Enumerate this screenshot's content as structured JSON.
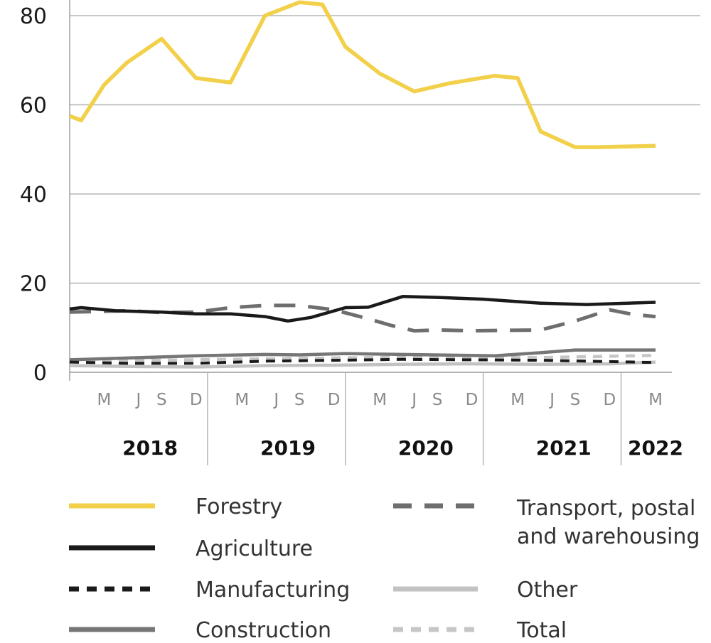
{
  "chart_data": {
    "type": "line",
    "ylim": [
      0,
      80
    ],
    "yticks": [
      "0",
      "20",
      "40",
      "60",
      "80"
    ],
    "grid": true,
    "legend_position": "bottom",
    "x_period": [
      "2018-01",
      "2022-04"
    ],
    "month_labels": [
      {
        "label": "M",
        "x": "2018-04"
      },
      {
        "label": "J",
        "x": "2018-07"
      },
      {
        "label": "S",
        "x": "2018-09"
      },
      {
        "label": "D",
        "x": "2018-12"
      },
      {
        "label": "M",
        "x": "2019-04"
      },
      {
        "label": "J",
        "x": "2019-07"
      },
      {
        "label": "S",
        "x": "2019-09"
      },
      {
        "label": "D",
        "x": "2019-12"
      },
      {
        "label": "M",
        "x": "2020-04"
      },
      {
        "label": "J",
        "x": "2020-07"
      },
      {
        "label": "S",
        "x": "2020-09"
      },
      {
        "label": "D",
        "x": "2020-12"
      },
      {
        "label": "M",
        "x": "2021-04"
      },
      {
        "label": "J",
        "x": "2021-07"
      },
      {
        "label": "S",
        "x": "2021-09"
      },
      {
        "label": "D",
        "x": "2021-12"
      },
      {
        "label": "M",
        "x": "2022-04"
      }
    ],
    "year_labels": [
      {
        "label": "2018",
        "x": "2018-08"
      },
      {
        "label": "2019",
        "x": "2019-08"
      },
      {
        "label": "2020",
        "x": "2020-08"
      },
      {
        "label": "2021",
        "x": "2021-08"
      },
      {
        "label": "2022",
        "x": "2022-04"
      }
    ],
    "year_separators": [
      "2019-01",
      "2020-01",
      "2021-01",
      "2022-01"
    ],
    "series": [
      {
        "name": "Forestry",
        "color": "#F2D04A",
        "style": "solid",
        "points": [
          [
            "2018-01",
            57.5
          ],
          [
            "2018-02",
            56.5
          ],
          [
            "2018-04",
            64.5
          ],
          [
            "2018-06",
            69.5
          ],
          [
            "2018-09",
            74.8
          ],
          [
            "2018-12",
            66
          ],
          [
            "2019-03",
            65
          ],
          [
            "2019-06",
            80
          ],
          [
            "2019-09",
            83
          ],
          [
            "2019-11",
            82.5
          ],
          [
            "2020-01",
            73
          ],
          [
            "2020-04",
            67
          ],
          [
            "2020-07",
            63
          ],
          [
            "2020-10",
            64.8
          ],
          [
            "2021-02",
            66.5
          ],
          [
            "2021-04",
            66
          ],
          [
            "2021-06",
            54
          ],
          [
            "2021-09",
            50.5
          ],
          [
            "2021-11",
            50.5
          ],
          [
            "2022-04",
            50.8
          ]
        ]
      },
      {
        "name": "Agriculture",
        "color": "#1a1a1a",
        "style": "solid",
        "points": [
          [
            "2018-01",
            14.2
          ],
          [
            "2018-02",
            14.5
          ],
          [
            "2018-05",
            13.8
          ],
          [
            "2018-09",
            13.5
          ],
          [
            "2018-12",
            13.1
          ],
          [
            "2019-03",
            13.1
          ],
          [
            "2019-06",
            12.5
          ],
          [
            "2019-08",
            11.5
          ],
          [
            "2019-10",
            12.3
          ],
          [
            "2020-01",
            14.5
          ],
          [
            "2020-03",
            14.6
          ],
          [
            "2020-06",
            17
          ],
          [
            "2020-09",
            16.8
          ],
          [
            "2021-01",
            16.4
          ],
          [
            "2021-06",
            15.5
          ],
          [
            "2021-10",
            15.2
          ],
          [
            "2022-04",
            15.7
          ]
        ]
      },
      {
        "name": "Manufacturing",
        "color": "#1a1a1a",
        "style": "dash-small",
        "points": [
          [
            "2018-01",
            2.3
          ],
          [
            "2018-06",
            2
          ],
          [
            "2018-12",
            2
          ],
          [
            "2019-06",
            2.5
          ],
          [
            "2019-12",
            2.7
          ],
          [
            "2020-06",
            2.9
          ],
          [
            "2020-12",
            2.8
          ],
          [
            "2021-06",
            2.7
          ],
          [
            "2021-12",
            2.4
          ],
          [
            "2022-04",
            2.2
          ]
        ]
      },
      {
        "name": "Construction",
        "color": "#767676",
        "style": "solid",
        "points": [
          [
            "2018-01",
            2.8
          ],
          [
            "2018-06",
            3.2
          ],
          [
            "2018-12",
            3.7
          ],
          [
            "2019-06",
            4
          ],
          [
            "2019-09",
            3.9
          ],
          [
            "2020-01",
            4.2
          ],
          [
            "2020-06",
            4
          ],
          [
            "2020-12",
            3.8
          ],
          [
            "2021-02",
            3.7
          ],
          [
            "2021-06",
            4.4
          ],
          [
            "2021-09",
            5
          ],
          [
            "2022-04",
            5
          ]
        ]
      },
      {
        "name": "Transport, postal and warehousing",
        "color": "#6e6e6e",
        "style": "dash-large",
        "points": [
          [
            "2018-01",
            13.5
          ],
          [
            "2018-06",
            13.8
          ],
          [
            "2018-09",
            13.4
          ],
          [
            "2018-12",
            13.5
          ],
          [
            "2019-03",
            14.5
          ],
          [
            "2019-06",
            15
          ],
          [
            "2019-09",
            15
          ],
          [
            "2019-12",
            14
          ],
          [
            "2020-03",
            12
          ],
          [
            "2020-05",
            10.5
          ],
          [
            "2020-07",
            9.3
          ],
          [
            "2020-09",
            9.5
          ],
          [
            "2020-12",
            9.3
          ],
          [
            "2021-06",
            9.5
          ],
          [
            "2021-09",
            11.5
          ],
          [
            "2021-12",
            14
          ],
          [
            "2022-02",
            13
          ],
          [
            "2022-04",
            12.5
          ]
        ]
      },
      {
        "name": "Other",
        "color": "#c2c2c2",
        "style": "solid",
        "points": [
          [
            "2018-01",
            1.5
          ],
          [
            "2018-06",
            1.3
          ],
          [
            "2018-12",
            1.2
          ],
          [
            "2019-06",
            1.5
          ],
          [
            "2019-12",
            1.6
          ],
          [
            "2020-06",
            1.8
          ],
          [
            "2020-12",
            1.9
          ],
          [
            "2021-06",
            1.8
          ],
          [
            "2021-12",
            1.9
          ],
          [
            "2022-04",
            2.3
          ]
        ]
      },
      {
        "name": "Total",
        "color": "#c6c6c6",
        "style": "dash-small",
        "points": [
          [
            "2018-01",
            2.5
          ],
          [
            "2018-06",
            2.6
          ],
          [
            "2018-12",
            2.8
          ],
          [
            "2019-06",
            3
          ],
          [
            "2019-12",
            3.2
          ],
          [
            "2020-06",
            3.4
          ],
          [
            "2020-12",
            3.3
          ],
          [
            "2021-06",
            3.3
          ],
          [
            "2021-12",
            3.6
          ],
          [
            "2022-04",
            3.8
          ]
        ]
      }
    ]
  }
}
